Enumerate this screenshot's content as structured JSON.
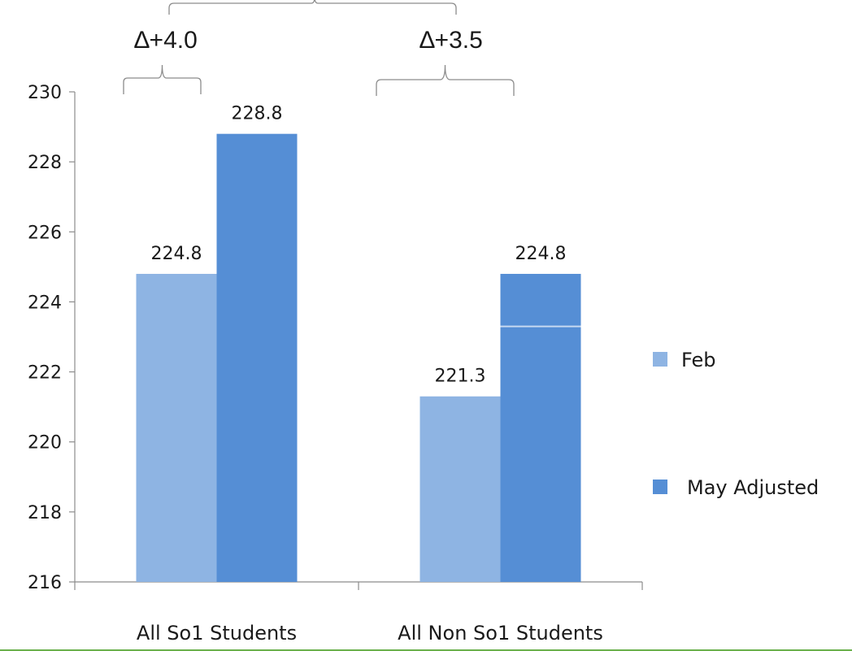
{
  "chart_data": {
    "type": "bar",
    "categories": [
      "All So1 Students",
      "All Non So1 Students"
    ],
    "series": [
      {
        "name": "Feb",
        "values": [
          224.8,
          221.3
        ],
        "color": "#8eb4e3"
      },
      {
        "name": "May Adjusted",
        "values": [
          228.8,
          224.8
        ],
        "color": "#558ed5"
      }
    ],
    "data_labels": [
      [
        "224.8",
        "221.3"
      ],
      [
        "228.8",
        "224.8"
      ]
    ],
    "ylim": [
      216,
      230
    ],
    "y_ticks": [
      216,
      218,
      220,
      222,
      224,
      226,
      228,
      230
    ],
    "grid": false,
    "legend_position": "right",
    "internal_line_value": 223.3,
    "annotations": [
      {
        "text": "∆+4.0",
        "category": 0
      },
      {
        "text": "∆+3.5",
        "category": 1
      }
    ]
  }
}
